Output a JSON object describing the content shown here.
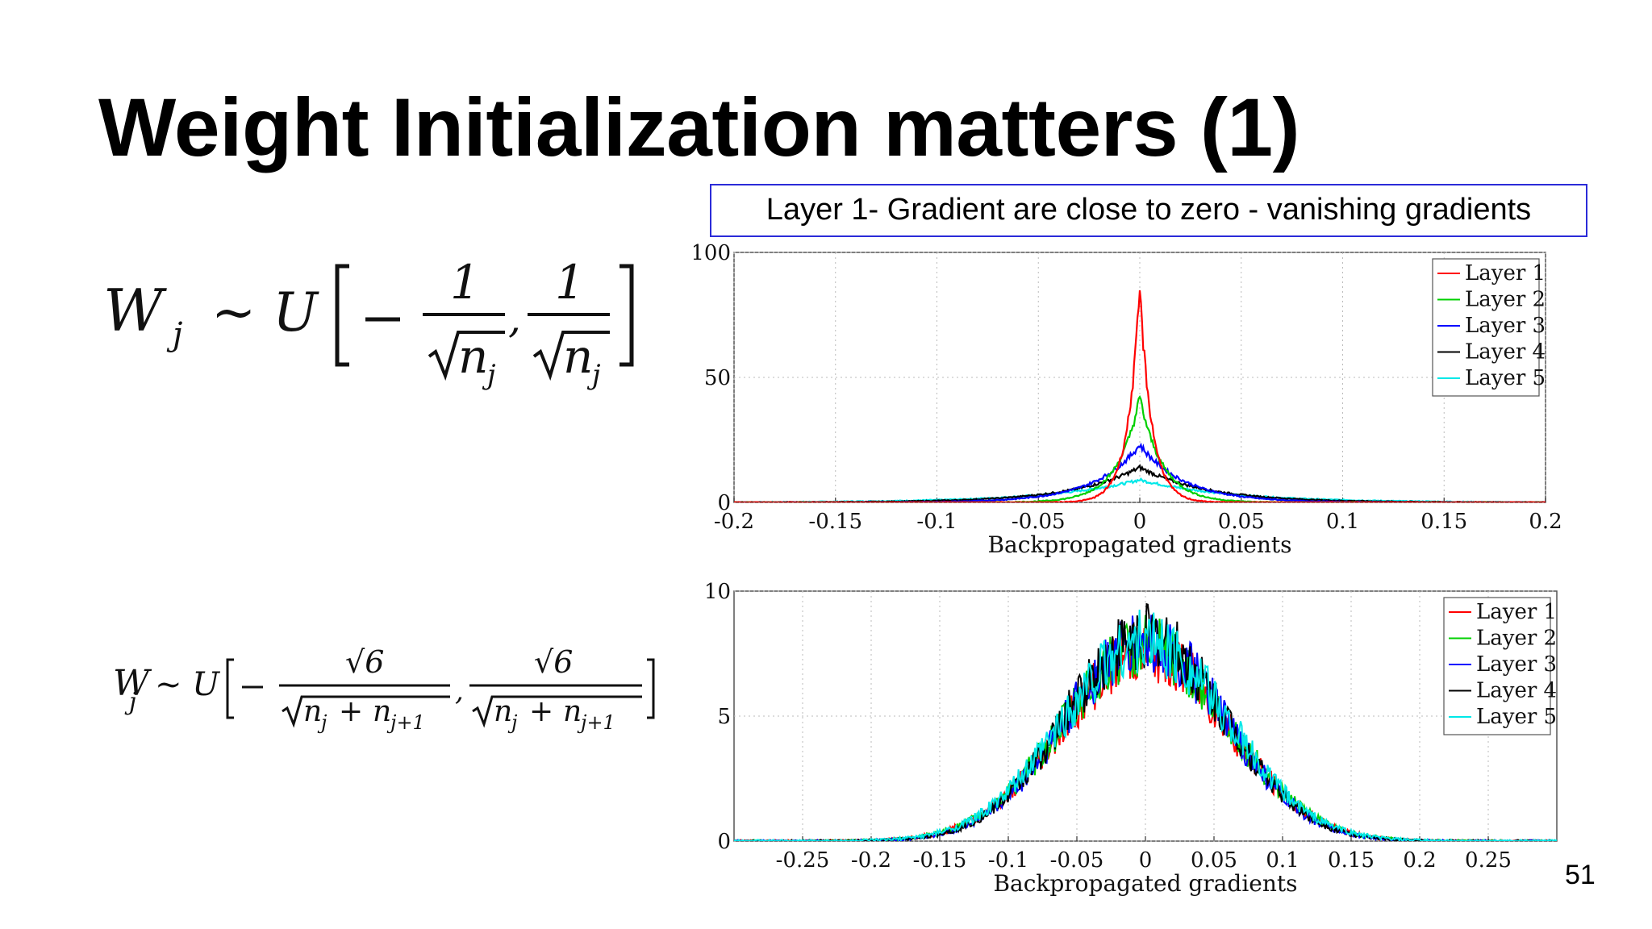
{
  "slide": {
    "title": "Weight Initialization matters (1)",
    "callout": "Layer 1- Gradient are close to zero - vanishing gradients",
    "page_number": "51"
  },
  "formulas": {
    "top": {
      "lhs": "W",
      "sub": "j",
      "op": "~ U",
      "num": "1",
      "den_var": "n",
      "den_sub": "j"
    },
    "bottom": {
      "lhs": "W",
      "sub": "j",
      "op": "~ U",
      "num": "√6",
      "den": "n",
      "den_sub1": "j",
      "plus": "+",
      "den2": "n",
      "den_sub2": "j+1"
    }
  },
  "colors": {
    "layer1": "#ff0000",
    "layer2": "#00d000",
    "layer3": "#0000ff",
    "layer4": "#000000",
    "layer5": "#00e8e8"
  },
  "chart_data": [
    {
      "type": "line",
      "title": "",
      "xlabel": "Backpropagated gradients",
      "ylabel": "",
      "xlim": [
        -0.2,
        0.2
      ],
      "ylim": [
        0,
        100
      ],
      "xticks": [
        "-0.2",
        "-0.15",
        "-0.1",
        "-0.05",
        "0",
        "0.05",
        "0.1",
        "0.15",
        "0.2"
      ],
      "yticks": [
        "0",
        "50",
        "100"
      ],
      "legend_position": "top-right",
      "series": [
        {
          "name": "Layer 1",
          "color": "#ff0000",
          "peak": 85,
          "width": 0.006,
          "dist": "laplace"
        },
        {
          "name": "Layer 2",
          "color": "#00d000",
          "peak": 42,
          "width": 0.011,
          "dist": "laplace"
        },
        {
          "name": "Layer 3",
          "color": "#0000ff",
          "peak": 23,
          "width": 0.022,
          "dist": "laplace"
        },
        {
          "name": "Layer 4",
          "color": "#000000",
          "peak": 14,
          "width": 0.033,
          "dist": "laplace"
        },
        {
          "name": "Layer 5",
          "color": "#00e8e8",
          "peak": 9,
          "width": 0.045,
          "dist": "laplace"
        }
      ]
    },
    {
      "type": "line",
      "title": "",
      "xlabel": "Backpropagated gradients",
      "ylabel": "",
      "xlim": [
        -0.3,
        0.3
      ],
      "ylim": [
        0,
        10
      ],
      "xticks": [
        "-0.25",
        "-0.2",
        "-0.15",
        "-0.1",
        "-0.05",
        "0",
        "0.05",
        "0.1",
        "0.15",
        "0.2",
        "0.25"
      ],
      "yticks": [
        "0",
        "5",
        "10"
      ],
      "legend_position": "top-right",
      "series": [
        {
          "name": "Layer 1",
          "color": "#ff0000",
          "peak": 7.6,
          "width": 0.06,
          "dist": "gauss"
        },
        {
          "name": "Layer 2",
          "color": "#00d000",
          "peak": 7.8,
          "width": 0.06,
          "dist": "gauss"
        },
        {
          "name": "Layer 3",
          "color": "#0000ff",
          "peak": 8.0,
          "width": 0.058,
          "dist": "gauss"
        },
        {
          "name": "Layer 4",
          "color": "#000000",
          "peak": 8.2,
          "width": 0.058,
          "dist": "gauss"
        },
        {
          "name": "Layer 5",
          "color": "#00e8e8",
          "peak": 8.0,
          "width": 0.06,
          "dist": "gauss"
        }
      ]
    }
  ]
}
